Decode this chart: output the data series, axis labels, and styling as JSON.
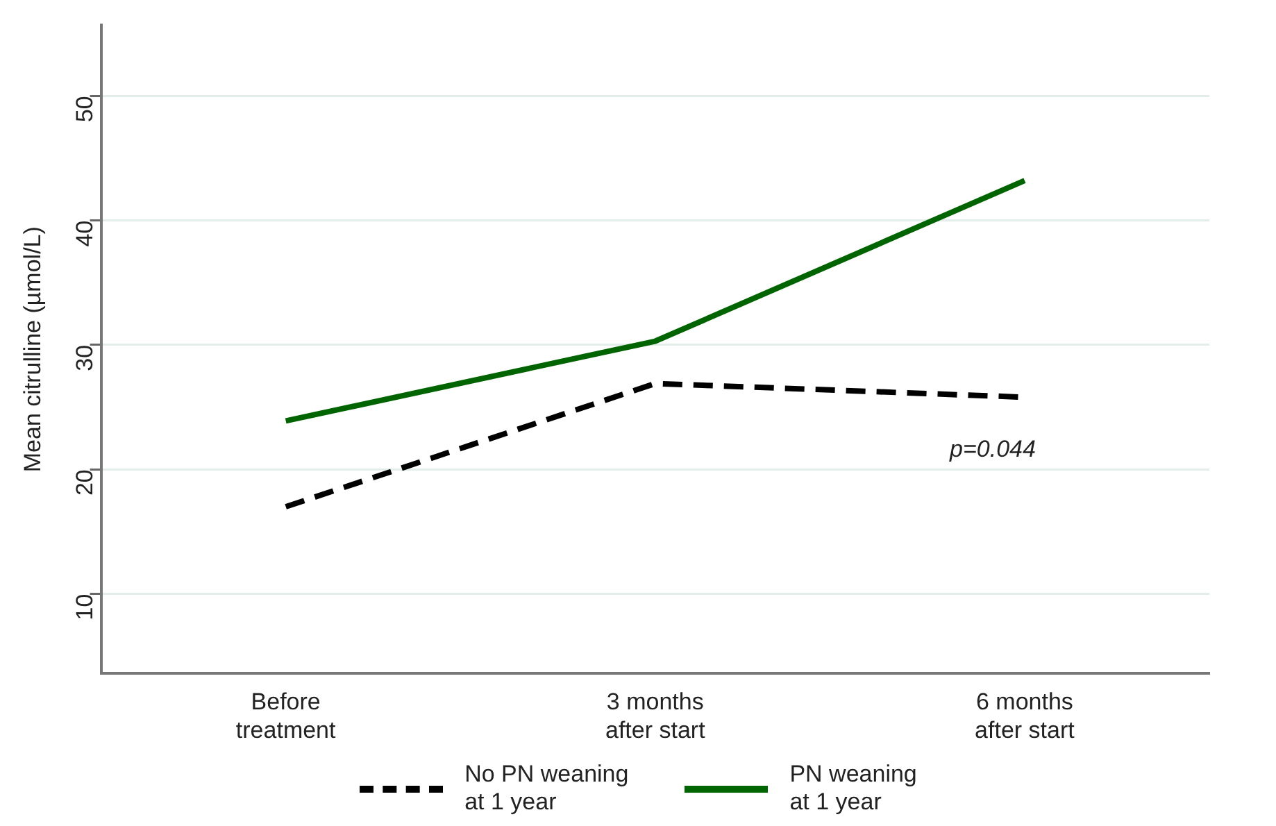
{
  "chart_data": {
    "type": "line",
    "ylabel": "Mean citrulline (µmol/L)",
    "categories": [
      "Before\ntreatment",
      "3 months\nafter start",
      "6 months\nafter start"
    ],
    "series": [
      {
        "name": "No PN weaning\nat 1 year",
        "color": "#000000",
        "values": [
          17.0,
          26.9,
          25.8
        ],
        "line_style": "dashed"
      },
      {
        "name": "PN weaning\nat 1 year",
        "color": "#006400",
        "values": [
          23.9,
          30.3,
          43.2
        ],
        "line_style": "solid"
      }
    ],
    "ylim": [
      3.6,
      55.7
    ],
    "yticks": [
      10,
      20,
      30,
      40,
      50
    ],
    "grid": "y",
    "legend": "bottom",
    "marker": "none",
    "annotations": [
      "p=0.044"
    ]
  }
}
